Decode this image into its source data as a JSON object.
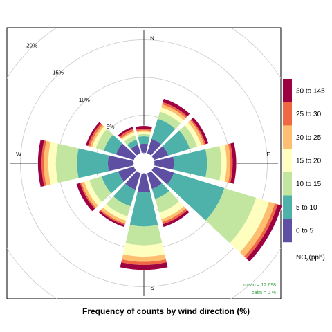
{
  "chart_data": {
    "type": "wind-rose",
    "title": "Frequency of counts by wind direction (%)",
    "compass": [
      "N",
      "E",
      "S",
      "W"
    ],
    "ring_labels": [
      "5%",
      "10%",
      "15%",
      "20%"
    ],
    "ring_values": [
      5,
      10,
      15,
      20
    ],
    "radial_max": 20,
    "directions_deg": [
      0,
      30,
      60,
      90,
      120,
      150,
      180,
      210,
      240,
      270,
      300,
      330
    ],
    "bins": [
      {
        "label": "0 to 5",
        "color": "#5E4FA2"
      },
      {
        "label": "5 to 10",
        "color": "#4FB2AA"
      },
      {
        "label": "10 to 15",
        "color": "#C2E6A0"
      },
      {
        "label": "15 to 20",
        "color": "#FEFEBE"
      },
      {
        "label": "20 to 25",
        "color": "#FDBF6F"
      },
      {
        "label": "25 to 30",
        "color": "#F06744"
      },
      {
        "label": "30 to 145",
        "color": "#9E0142"
      }
    ],
    "cumulative": [
      [
        1.2,
        2.2,
        2.5,
        2.8,
        3.0,
        3.2,
        3.6
      ],
      [
        2.0,
        4.8,
        5.8,
        6.4,
        6.8,
        7.1,
        7.6
      ],
      [
        2.0,
        5.0,
        6.0,
        6.6,
        7.0,
        7.2,
        7.6
      ],
      [
        2.6,
        7.0,
        8.9,
        9.6,
        10.1,
        10.4,
        10.9
      ],
      [
        2.8,
        9.8,
        14.2,
        16.0,
        16.8,
        17.2,
        17.8
      ],
      [
        2.2,
        3.6,
        5.5,
        6.4,
        6.8,
        7.1,
        7.5
      ],
      [
        2.5,
        7.0,
        9.5,
        11.0,
        11.7,
        12.1,
        12.8
      ],
      [
        2.3,
        4.6,
        6.0,
        6.6,
        7.0,
        7.2,
        7.5
      ],
      [
        2.2,
        4.5,
        6.2,
        6.9,
        7.3,
        7.5,
        8.0
      ],
      [
        3.4,
        7.5,
        10.3,
        11.3,
        11.9,
        12.2,
        12.7
      ],
      [
        2.5,
        4.2,
        5.3,
        5.8,
        6.1,
        6.4,
        6.7
      ],
      [
        1.2,
        1.9,
        2.5,
        2.9,
        3.1,
        3.4,
        3.7
      ]
    ],
    "legend_title": "NOx(ppb)",
    "legend_title_main": "NO",
    "legend_title_sub": "x",
    "legend_title_unit": "(ppb)",
    "stats": {
      "mean": "mean = 12.698",
      "calm": "calm = 0 %"
    },
    "grid": true,
    "legend_position": "right"
  }
}
